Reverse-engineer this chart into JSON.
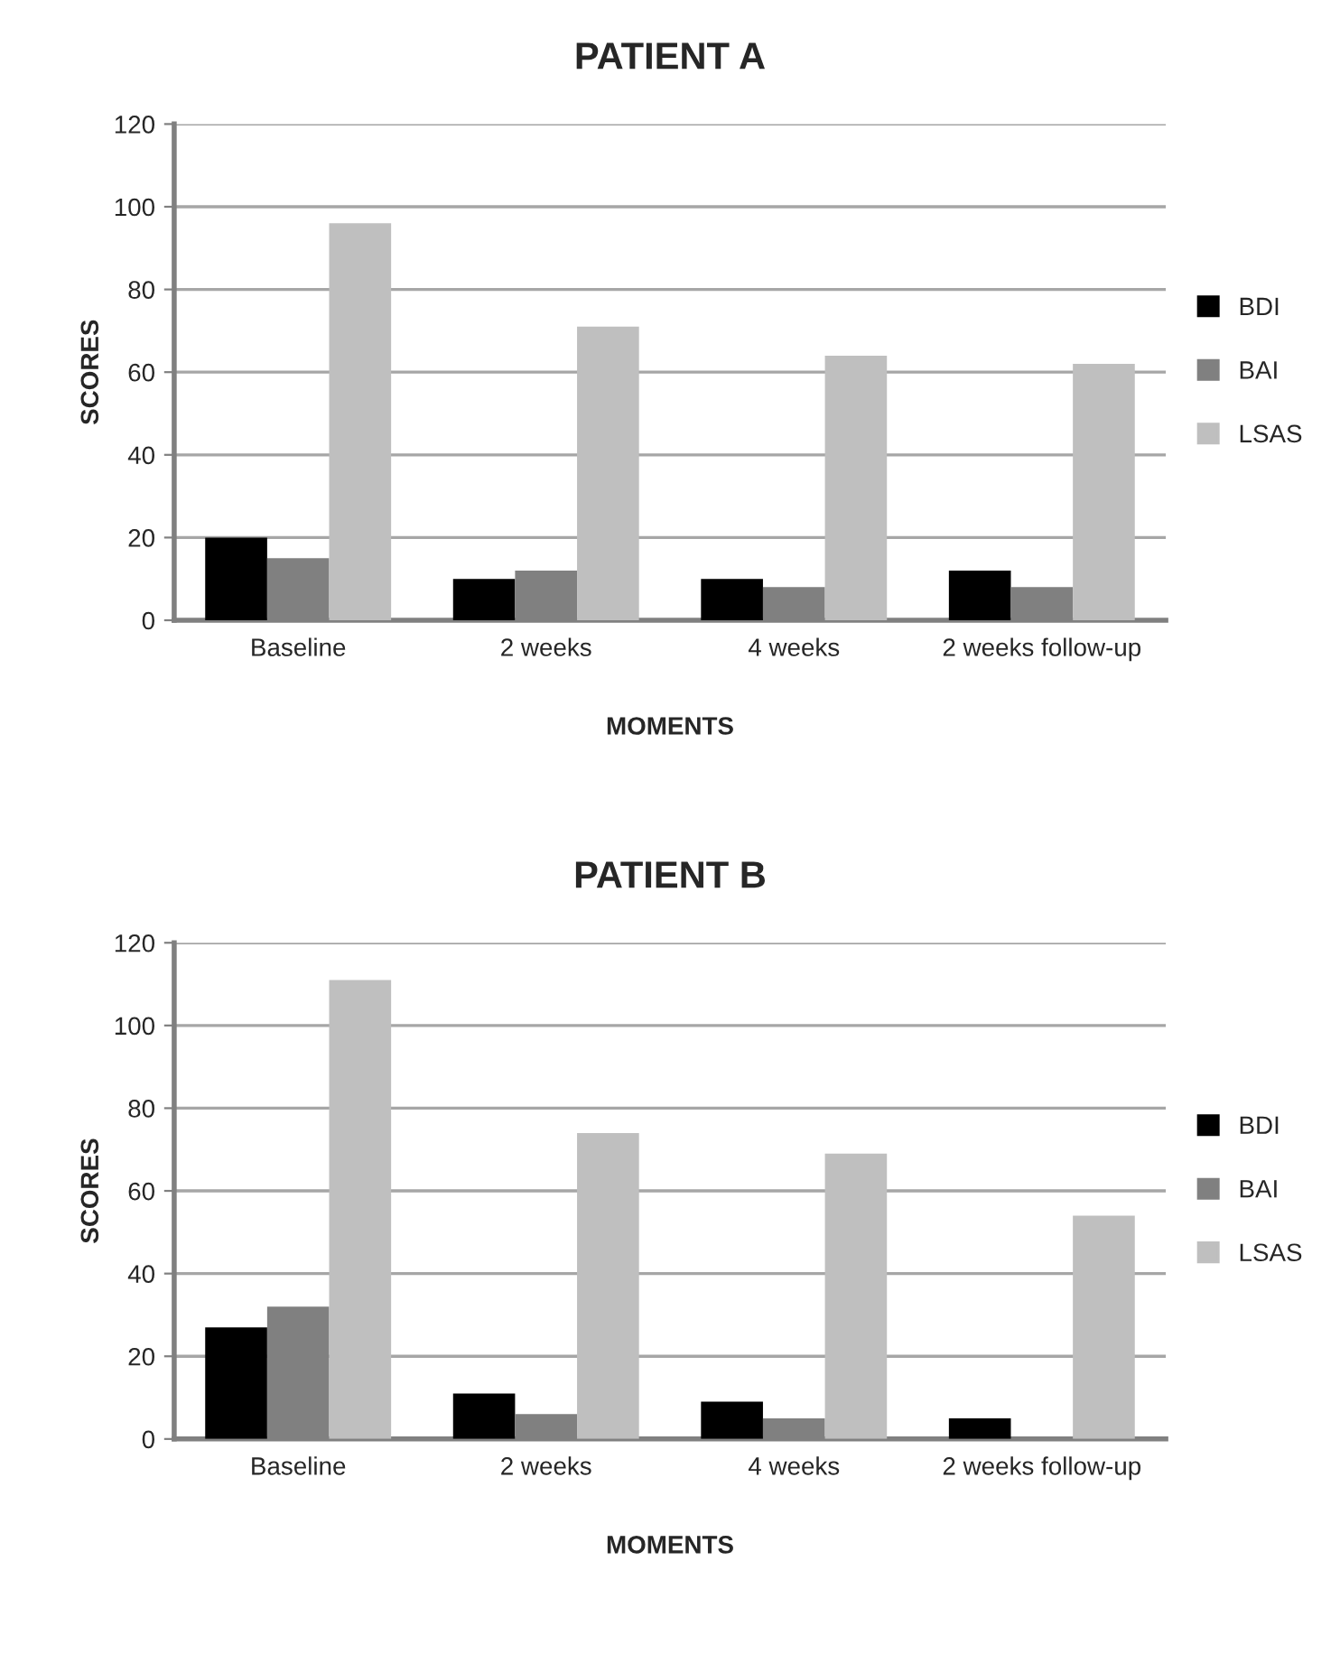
{
  "chart_data": [
    {
      "type": "bar",
      "title": "PATIENT A",
      "xlabel": "MOMENTS",
      "ylabel": "SCORES",
      "categories": [
        "Baseline",
        "2 weeks",
        "4 weeks",
        "2 weeks follow-up"
      ],
      "series": [
        {
          "name": "BDI",
          "color": "#000000",
          "values": [
            20,
            10,
            10,
            12
          ]
        },
        {
          "name": "BAI",
          "color": "#808080",
          "values": [
            15,
            12,
            8,
            8
          ]
        },
        {
          "name": "LSAS",
          "color": "#bfbfbf",
          "values": [
            96,
            71,
            64,
            62
          ]
        }
      ],
      "ylim": [
        0,
        120
      ],
      "yticks": [
        0,
        20,
        40,
        60,
        80,
        100,
        120
      ],
      "grid": "y",
      "legend": "right"
    },
    {
      "type": "bar",
      "title": "PATIENT B",
      "xlabel": "MOMENTS",
      "ylabel": "SCORES",
      "categories": [
        "Baseline",
        "2 weeks",
        "4 weeks",
        "2 weeks follow-up"
      ],
      "series": [
        {
          "name": "BDI",
          "color": "#000000",
          "values": [
            27,
            11,
            9,
            5
          ]
        },
        {
          "name": "BAI",
          "color": "#808080",
          "values": [
            32,
            6,
            5,
            null
          ]
        },
        {
          "name": "LSAS",
          "color": "#bfbfbf",
          "values": [
            111,
            74,
            69,
            54
          ]
        }
      ],
      "ylim": [
        0,
        120
      ],
      "yticks": [
        0,
        20,
        40,
        60,
        80,
        100,
        120
      ],
      "grid": "y",
      "legend": "right"
    }
  ]
}
